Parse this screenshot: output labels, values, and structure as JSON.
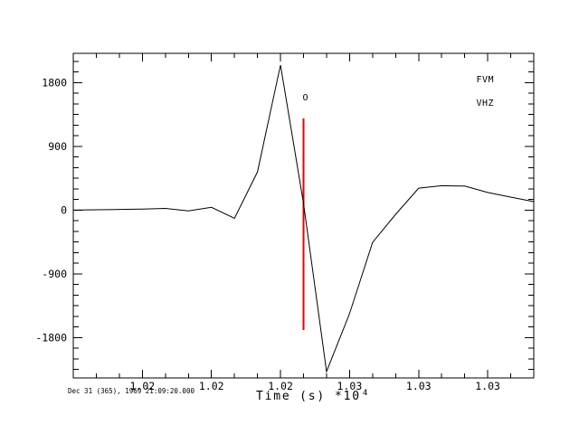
{
  "figure": {
    "background_color": "#ffffff",
    "axis_color": "#000000",
    "trace_color": "#000000",
    "marker_color": "#e60000"
  },
  "legend": {
    "station": "FVM",
    "channel": "VHZ"
  },
  "footer": {
    "reference_time": "Dec 31 (365), 1969 21:09:20.000"
  },
  "x_axis": {
    "title": "Time (s)",
    "scale_label": "*10",
    "scale_exponent": "4",
    "range": [
      1.014,
      1.034
    ],
    "minor_step": 0.001,
    "ticks": [
      {
        "label": "1.02",
        "value": 1.017
      },
      {
        "label": "1.02",
        "value": 1.02
      },
      {
        "label": "1.02",
        "value": 1.023
      },
      {
        "label": "1.03",
        "value": 1.026
      },
      {
        "label": "1.03",
        "value": 1.029
      },
      {
        "label": "1.03",
        "value": 1.032
      }
    ]
  },
  "y_axis": {
    "range": [
      -2370,
      2215
    ],
    "minor_step": 150,
    "ticks": [
      {
        "label": "1800",
        "value": 1800
      },
      {
        "label": "900",
        "value": 900
      },
      {
        "label": "0",
        "value": 0
      },
      {
        "label": "-900",
        "value": -900
      },
      {
        "label": "-1800",
        "value": -1800
      }
    ]
  },
  "chart_data": {
    "type": "line",
    "title": "",
    "xlabel": "Time (s) *10^4",
    "ylabel": "",
    "xlim": [
      1.014,
      1.034
    ],
    "ylim": [
      -2370,
      2215
    ],
    "grid": false,
    "legend_position": "top-right",
    "series": [
      {
        "name": "FVM VHZ",
        "x": [
          1.014,
          1.015,
          1.016,
          1.017,
          1.018,
          1.019,
          1.02,
          1.021,
          1.022,
          1.023,
          1.024,
          1.025,
          1.026,
          1.027,
          1.028,
          1.029,
          1.03,
          1.031,
          1.032,
          1.033,
          1.034
        ],
        "y": [
          0,
          5,
          10,
          15,
          25,
          -10,
          40,
          -115,
          540,
          2050,
          95,
          -2280,
          -1460,
          -455,
          -60,
          310,
          345,
          340,
          250,
          185,
          120
        ]
      }
    ],
    "origin_marker": {
      "label": "O",
      "x": 1.024,
      "amp_top": 1295,
      "amp_bottom": -1690,
      "color": "#e60000"
    }
  }
}
